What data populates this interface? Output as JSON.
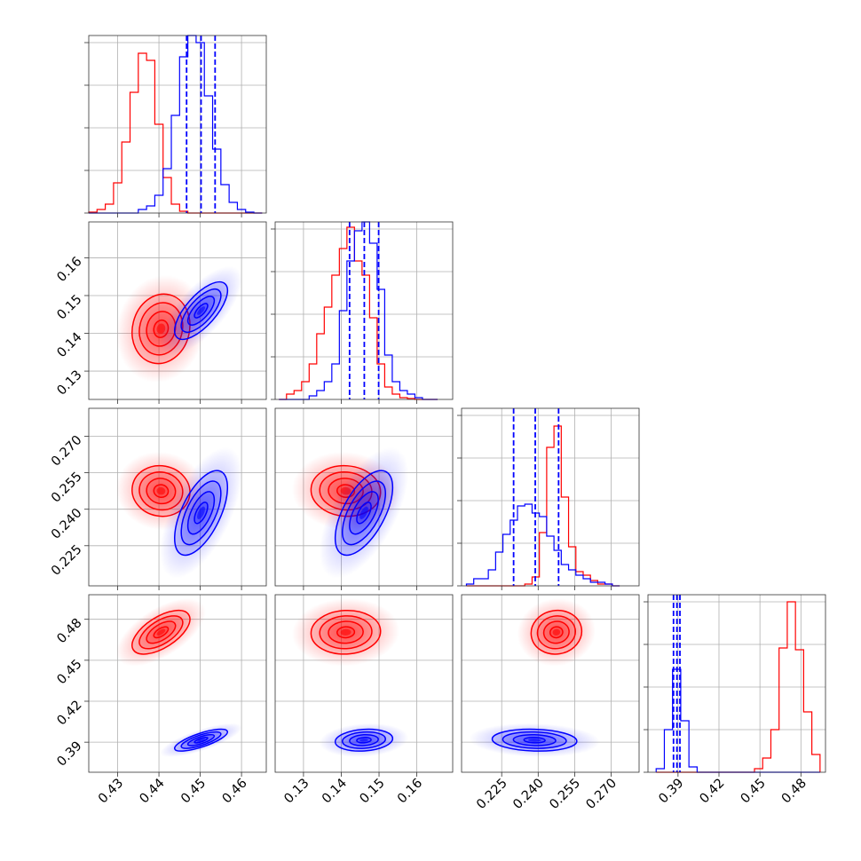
{
  "chart_data": {
    "type": "corner",
    "parameters": 4,
    "grid": true,
    "colors": {
      "red": "#ff0000",
      "blue": "#0000ff"
    },
    "axes": {
      "p0": {
        "range": [
          0.423,
          0.466
        ],
        "ticks": [
          0.43,
          0.44,
          0.45,
          0.46
        ],
        "tick_labels": [
          "0.43",
          "0.44",
          "0.45",
          "0.46"
        ]
      },
      "p1": {
        "range": [
          0.1225,
          0.1695
        ],
        "ticks": [
          0.13,
          0.14,
          0.15,
          0.16
        ],
        "tick_labels": [
          "0.13",
          "0.14",
          "0.15",
          "0.16"
        ]
      },
      "p2": {
        "range": [
          0.2085,
          0.2815
        ],
        "ticks": [
          0.225,
          0.24,
          0.255,
          0.27
        ],
        "tick_labels": [
          "0.225",
          "0.240",
          "0.255",
          "0.270"
        ]
      },
      "p3": {
        "range": [
          0.368,
          0.498
        ],
        "ticks": [
          0.39,
          0.42,
          0.45,
          0.48
        ],
        "tick_labels": [
          "0.39",
          "0.42",
          "0.45",
          "0.48"
        ]
      }
    },
    "series": [
      {
        "color": "red",
        "mean": [
          0.4405,
          0.1412,
          0.2475,
          0.4705
        ],
        "sd": [
          0.0035,
          0.0046,
          0.0052,
          0.008
        ]
      },
      {
        "color": "blue",
        "mean": [
          0.4502,
          0.146,
          0.2385,
          0.3915
        ],
        "sd": [
          0.0032,
          0.0038,
          0.0087,
          0.004
        ]
      }
    ],
    "blue_quantile_lines": {
      "p0": [
        0.4467,
        0.4502,
        0.4536
      ],
      "p1": [
        0.1422,
        0.1461,
        0.1499
      ],
      "p2": [
        0.2299,
        0.2388,
        0.2484
      ],
      "p3": [
        0.3867,
        0.3892,
        0.3914
      ]
    },
    "histograms": {
      "p0": {
        "edges": [
          0.423,
          0.425,
          0.427,
          0.429,
          0.431,
          0.433,
          0.435,
          0.437,
          0.439,
          0.441,
          0.443,
          0.445,
          0.447,
          0.449,
          0.451,
          0.453,
          0.455,
          0.457,
          0.459,
          0.461,
          0.463,
          0.465
        ],
        "red": [
          0.005,
          0.02,
          0.05,
          0.17,
          0.4,
          0.68,
          0.9,
          0.86,
          0.5,
          0.2,
          0.05,
          0.01,
          0,
          0,
          0,
          0,
          0,
          0,
          0,
          0,
          0
        ],
        "blue": [
          0,
          0,
          0,
          0,
          0,
          0,
          0.02,
          0.04,
          0.1,
          0.25,
          0.55,
          0.88,
          1.0,
          0.96,
          0.66,
          0.36,
          0.16,
          0.06,
          0.02,
          0.005,
          0
        ]
      },
      "p1": {
        "edges": [
          0.1235,
          0.1255,
          0.1275,
          0.1295,
          0.1315,
          0.1335,
          0.1355,
          0.1375,
          0.1395,
          0.1415,
          0.1435,
          0.1455,
          0.1475,
          0.1495,
          0.1515,
          0.1535,
          0.1555,
          0.1575,
          0.1595,
          0.1615,
          0.1635,
          0.1655
        ],
        "red": [
          0,
          0.03,
          0.05,
          0.1,
          0.2,
          0.37,
          0.52,
          0.7,
          0.85,
          0.97,
          0.78,
          0.7,
          0.46,
          0.2,
          0.07,
          0.03,
          0.01,
          0.005,
          0,
          0,
          0
        ],
        "blue": [
          0,
          0,
          0,
          0,
          0.02,
          0.05,
          0.1,
          0.2,
          0.5,
          0.78,
          0.95,
          1.0,
          0.88,
          0.62,
          0.25,
          0.1,
          0.05,
          0.03,
          0.01,
          0,
          0
        ]
      },
      "p2": {
        "edges": [
          0.2105,
          0.2135,
          0.2165,
          0.2195,
          0.2225,
          0.2255,
          0.2285,
          0.2315,
          0.2345,
          0.2375,
          0.2405,
          0.2435,
          0.2465,
          0.2495,
          0.2525,
          0.2555,
          0.2585,
          0.2615,
          0.2645,
          0.2675,
          0.2705,
          0.2735
        ],
        "red": [
          0,
          0,
          0,
          0,
          0,
          0,
          0,
          0,
          0.01,
          0.05,
          0.3,
          0.78,
          0.9,
          0.5,
          0.22,
          0.08,
          0.06,
          0.03,
          0.01,
          0.01,
          0
        ],
        "blue": [
          0.01,
          0.04,
          0.04,
          0.09,
          0.19,
          0.29,
          0.37,
          0.45,
          0.46,
          0.41,
          0.39,
          0.28,
          0.2,
          0.12,
          0.09,
          0.06,
          0.04,
          0.02,
          0.02,
          0.01,
          0
        ]
      },
      "p3": {
        "edges": [
          0.374,
          0.38,
          0.386,
          0.392,
          0.398,
          0.404,
          0.41,
          0.416,
          0.422,
          0.428,
          0.434,
          0.44,
          0.446,
          0.452,
          0.458,
          0.464,
          0.47,
          0.476,
          0.482,
          0.488,
          0.494
        ],
        "red": [
          0,
          0,
          0,
          0,
          0,
          0,
          0,
          0,
          0,
          0,
          0,
          0,
          0.02,
          0.08,
          0.24,
          0.7,
          0.96,
          0.69,
          0.34,
          0.1
        ],
        "blue": [
          0.02,
          0.24,
          0.58,
          0.29,
          0.03,
          0,
          0,
          0,
          0,
          0,
          0,
          0,
          0,
          0,
          0,
          0,
          0,
          0,
          0,
          0
        ]
      }
    },
    "correlations": {
      "red": {
        "1_0": 0.1,
        "2_0": -0.05,
        "2_1": -0.05,
        "3_0": 0.6,
        "3_1": 0.05,
        "3_2": 0.05
      },
      "blue": {
        "1_0": 0.7,
        "2_0": 0.6,
        "2_1": 0.6,
        "3_0": 0.75,
        "3_1": 0.15,
        "3_2": -0.1
      }
    },
    "contour_levels_sigma": [
      0.5,
      1.0,
      1.5,
      2.0
    ]
  }
}
